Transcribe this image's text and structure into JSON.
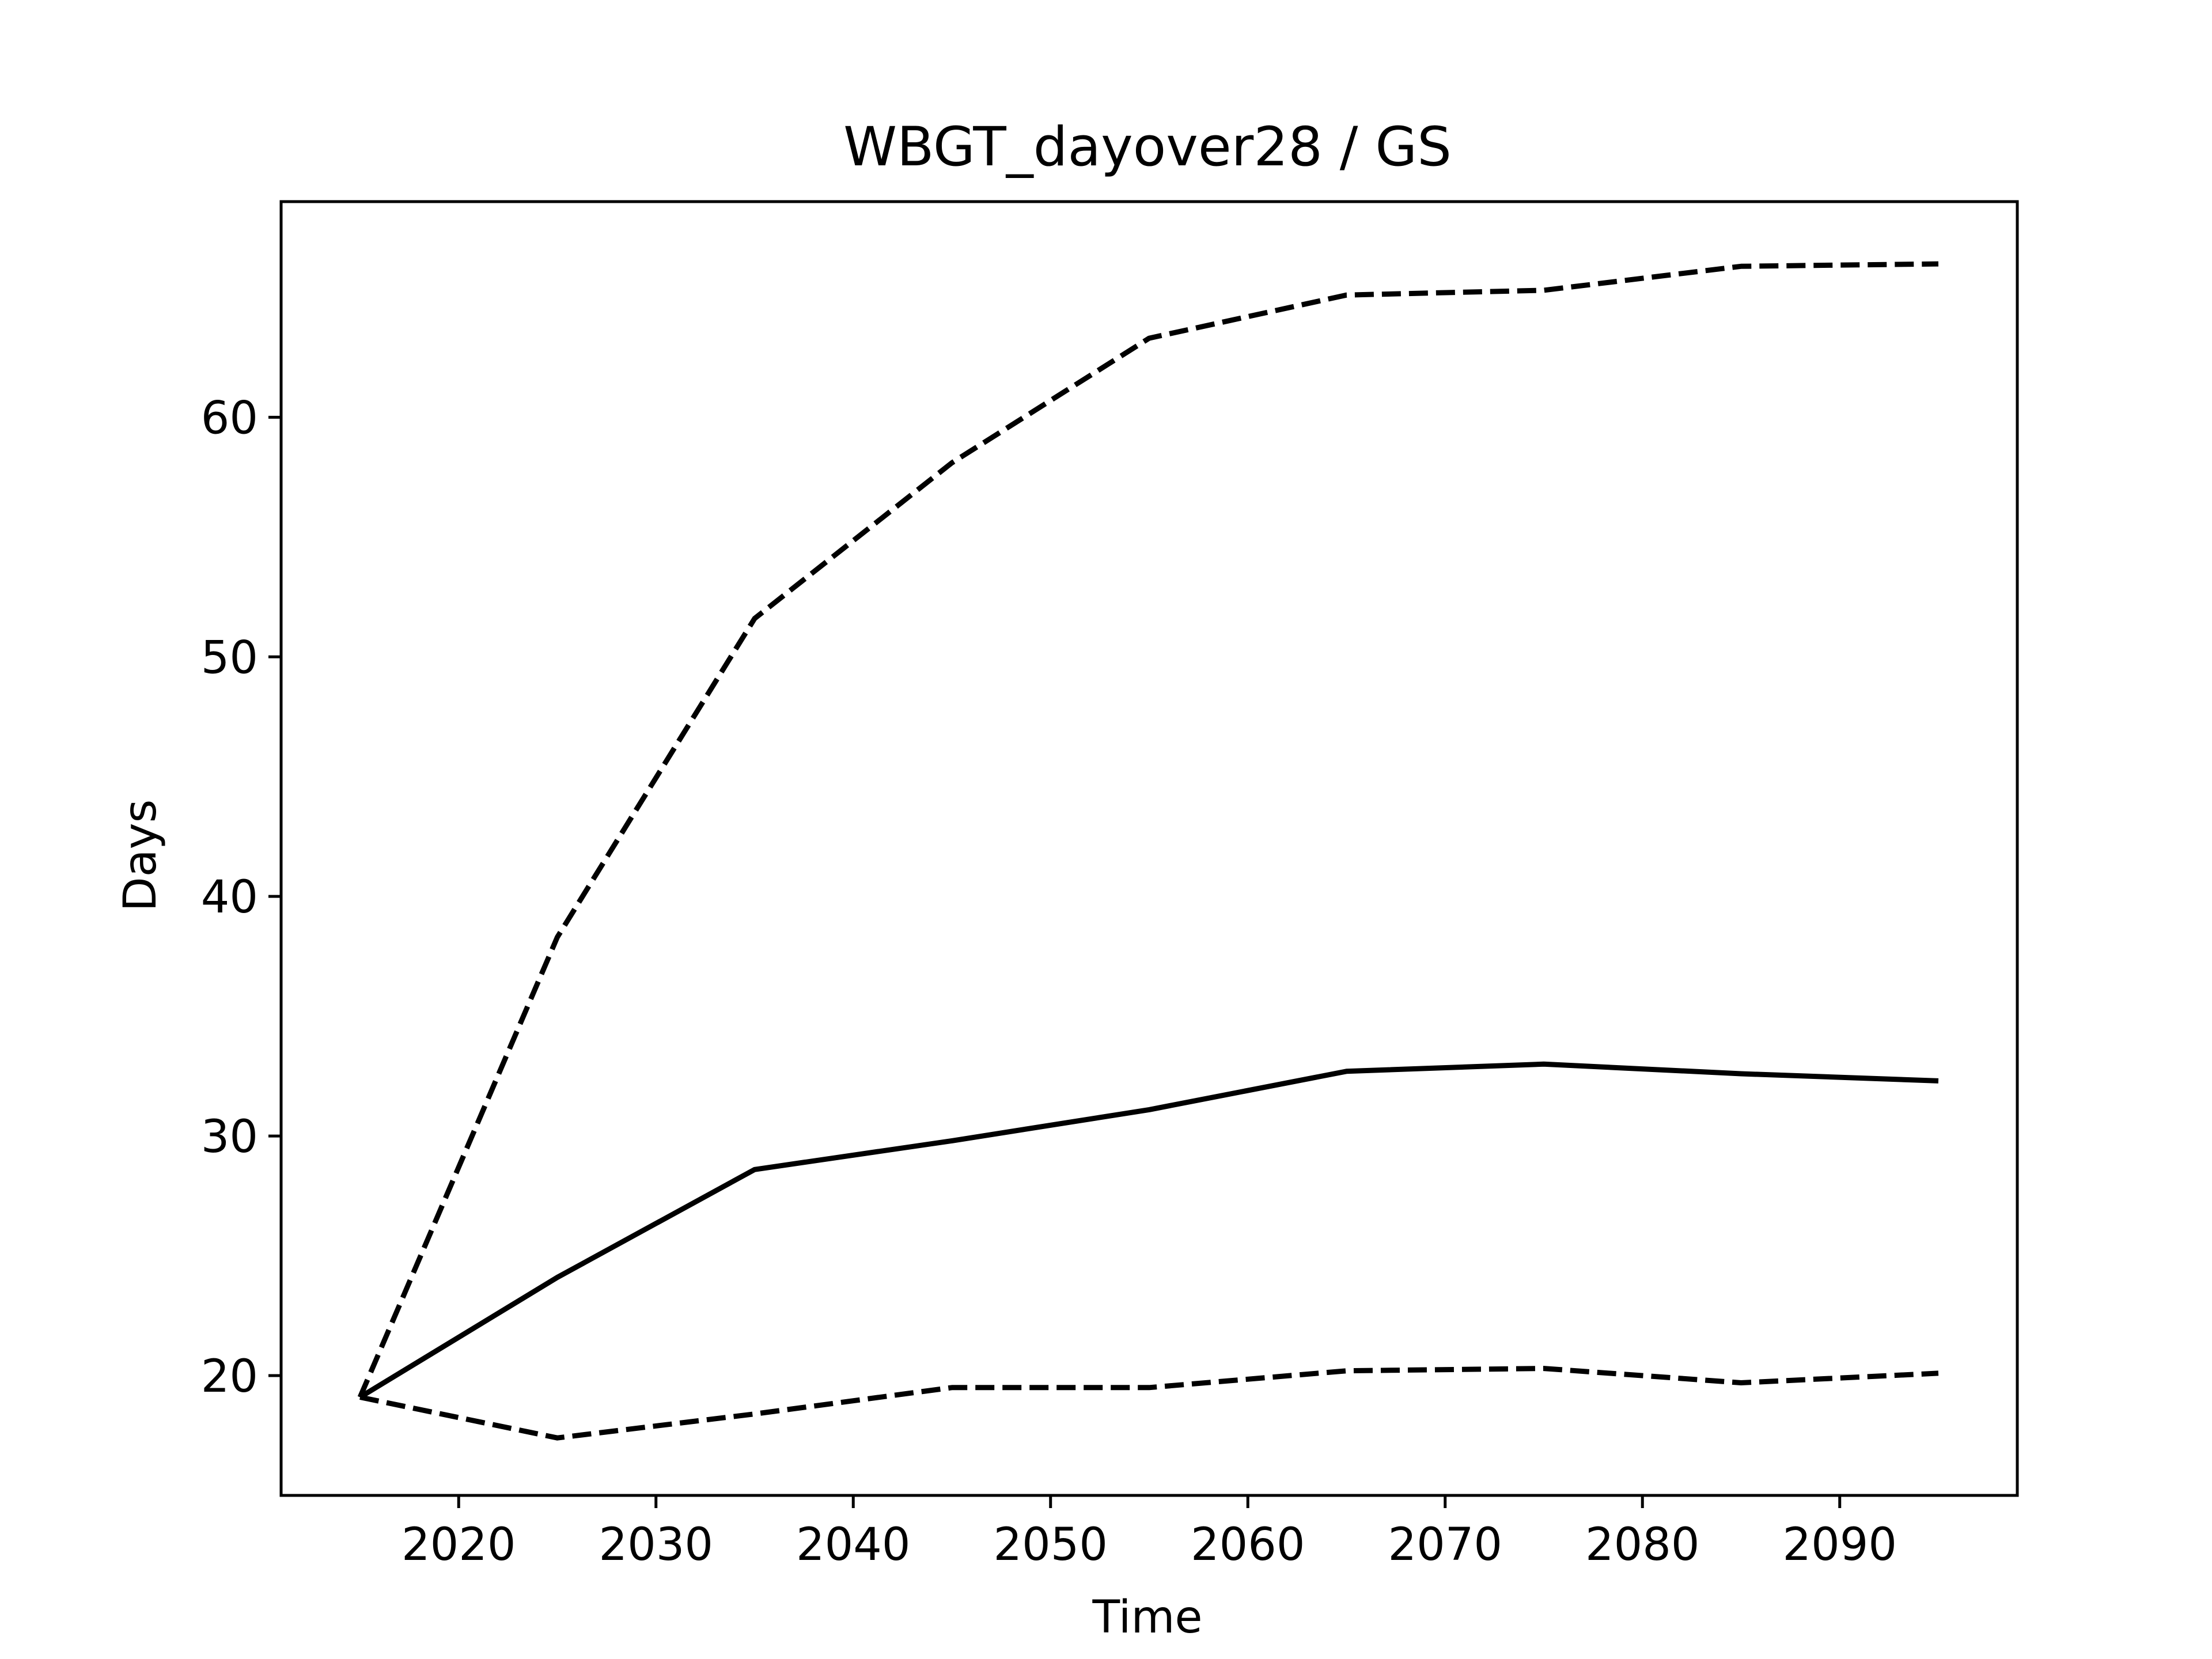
{
  "chart_data": {
    "type": "line",
    "title": "WBGT_dayover28 / GS",
    "xlabel": "Time",
    "ylabel": "Days",
    "xlim": [
      2011,
      2099
    ],
    "ylim": [
      15,
      69
    ],
    "x_ticks": [
      2020,
      2030,
      2040,
      2050,
      2060,
      2070,
      2080,
      2090
    ],
    "y_ticks": [
      20,
      30,
      40,
      50,
      60
    ],
    "grid": false,
    "legend": "none",
    "x": [
      2015,
      2025,
      2035,
      2045,
      2055,
      2065,
      2075,
      2085,
      2095
    ],
    "series": [
      {
        "line_style": "solid",
        "color": "#000000",
        "values": [
          19.1,
          24.1,
          28.6,
          29.8,
          31.1,
          32.7,
          33.0,
          32.6,
          32.3
        ]
      },
      {
        "line_style": "dashed",
        "color": "#000000",
        "values": [
          19.1,
          38.3,
          51.6,
          58.1,
          63.3,
          65.1,
          65.3,
          66.3,
          66.4
        ]
      },
      {
        "line_style": "dashed",
        "color": "#000000",
        "values": [
          19.1,
          17.4,
          18.4,
          19.5,
          19.5,
          20.2,
          20.3,
          19.7,
          20.1
        ]
      }
    ]
  }
}
